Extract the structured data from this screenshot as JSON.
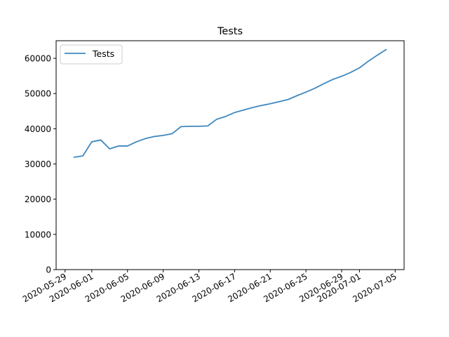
{
  "chart_data": {
    "type": "line",
    "title": "Tests",
    "xlabel": "",
    "ylabel": "",
    "x_axis_type": "date",
    "xlim": [
      "2020-05-28",
      "2020-07-06"
    ],
    "ylim": [
      0,
      65000
    ],
    "x_tick_labels": [
      "2020-05-29",
      "2020-06-01",
      "2020-06-05",
      "2020-06-09",
      "2020-06-13",
      "2020-06-17",
      "2020-06-21",
      "2020-06-25",
      "2020-06-29",
      "2020-07-01",
      "2020-07-05"
    ],
    "y_tick_labels": [
      "0",
      "10000",
      "20000",
      "30000",
      "40000",
      "50000",
      "60000"
    ],
    "grid": false,
    "legend_position": "upper-left",
    "line_color": "#3f88bf",
    "series": [
      {
        "name": "Tests",
        "x": [
          "2020-05-30",
          "2020-05-31",
          "2020-06-01",
          "2020-06-02",
          "2020-06-03",
          "2020-06-04",
          "2020-06-05",
          "2020-06-06",
          "2020-06-07",
          "2020-06-08",
          "2020-06-09",
          "2020-06-10",
          "2020-06-11",
          "2020-06-12",
          "2020-06-13",
          "2020-06-14",
          "2020-06-15",
          "2020-06-16",
          "2020-06-17",
          "2020-06-18",
          "2020-06-19",
          "2020-06-20",
          "2020-06-21",
          "2020-06-22",
          "2020-06-23",
          "2020-06-24",
          "2020-06-25",
          "2020-06-26",
          "2020-06-27",
          "2020-06-28",
          "2020-06-29",
          "2020-06-30",
          "2020-07-01",
          "2020-07-02",
          "2020-07-03",
          "2020-07-04"
        ],
        "y": [
          31900,
          32300,
          36300,
          36800,
          34300,
          35100,
          35100,
          36300,
          37200,
          37800,
          38100,
          38600,
          40600,
          40700,
          40700,
          40800,
          42700,
          43500,
          44600,
          45300,
          46000,
          46600,
          47100,
          47700,
          48300,
          49400,
          50400,
          51500,
          52800,
          54000,
          54900,
          56000,
          57300,
          59200,
          60900,
          62500
        ]
      }
    ]
  }
}
